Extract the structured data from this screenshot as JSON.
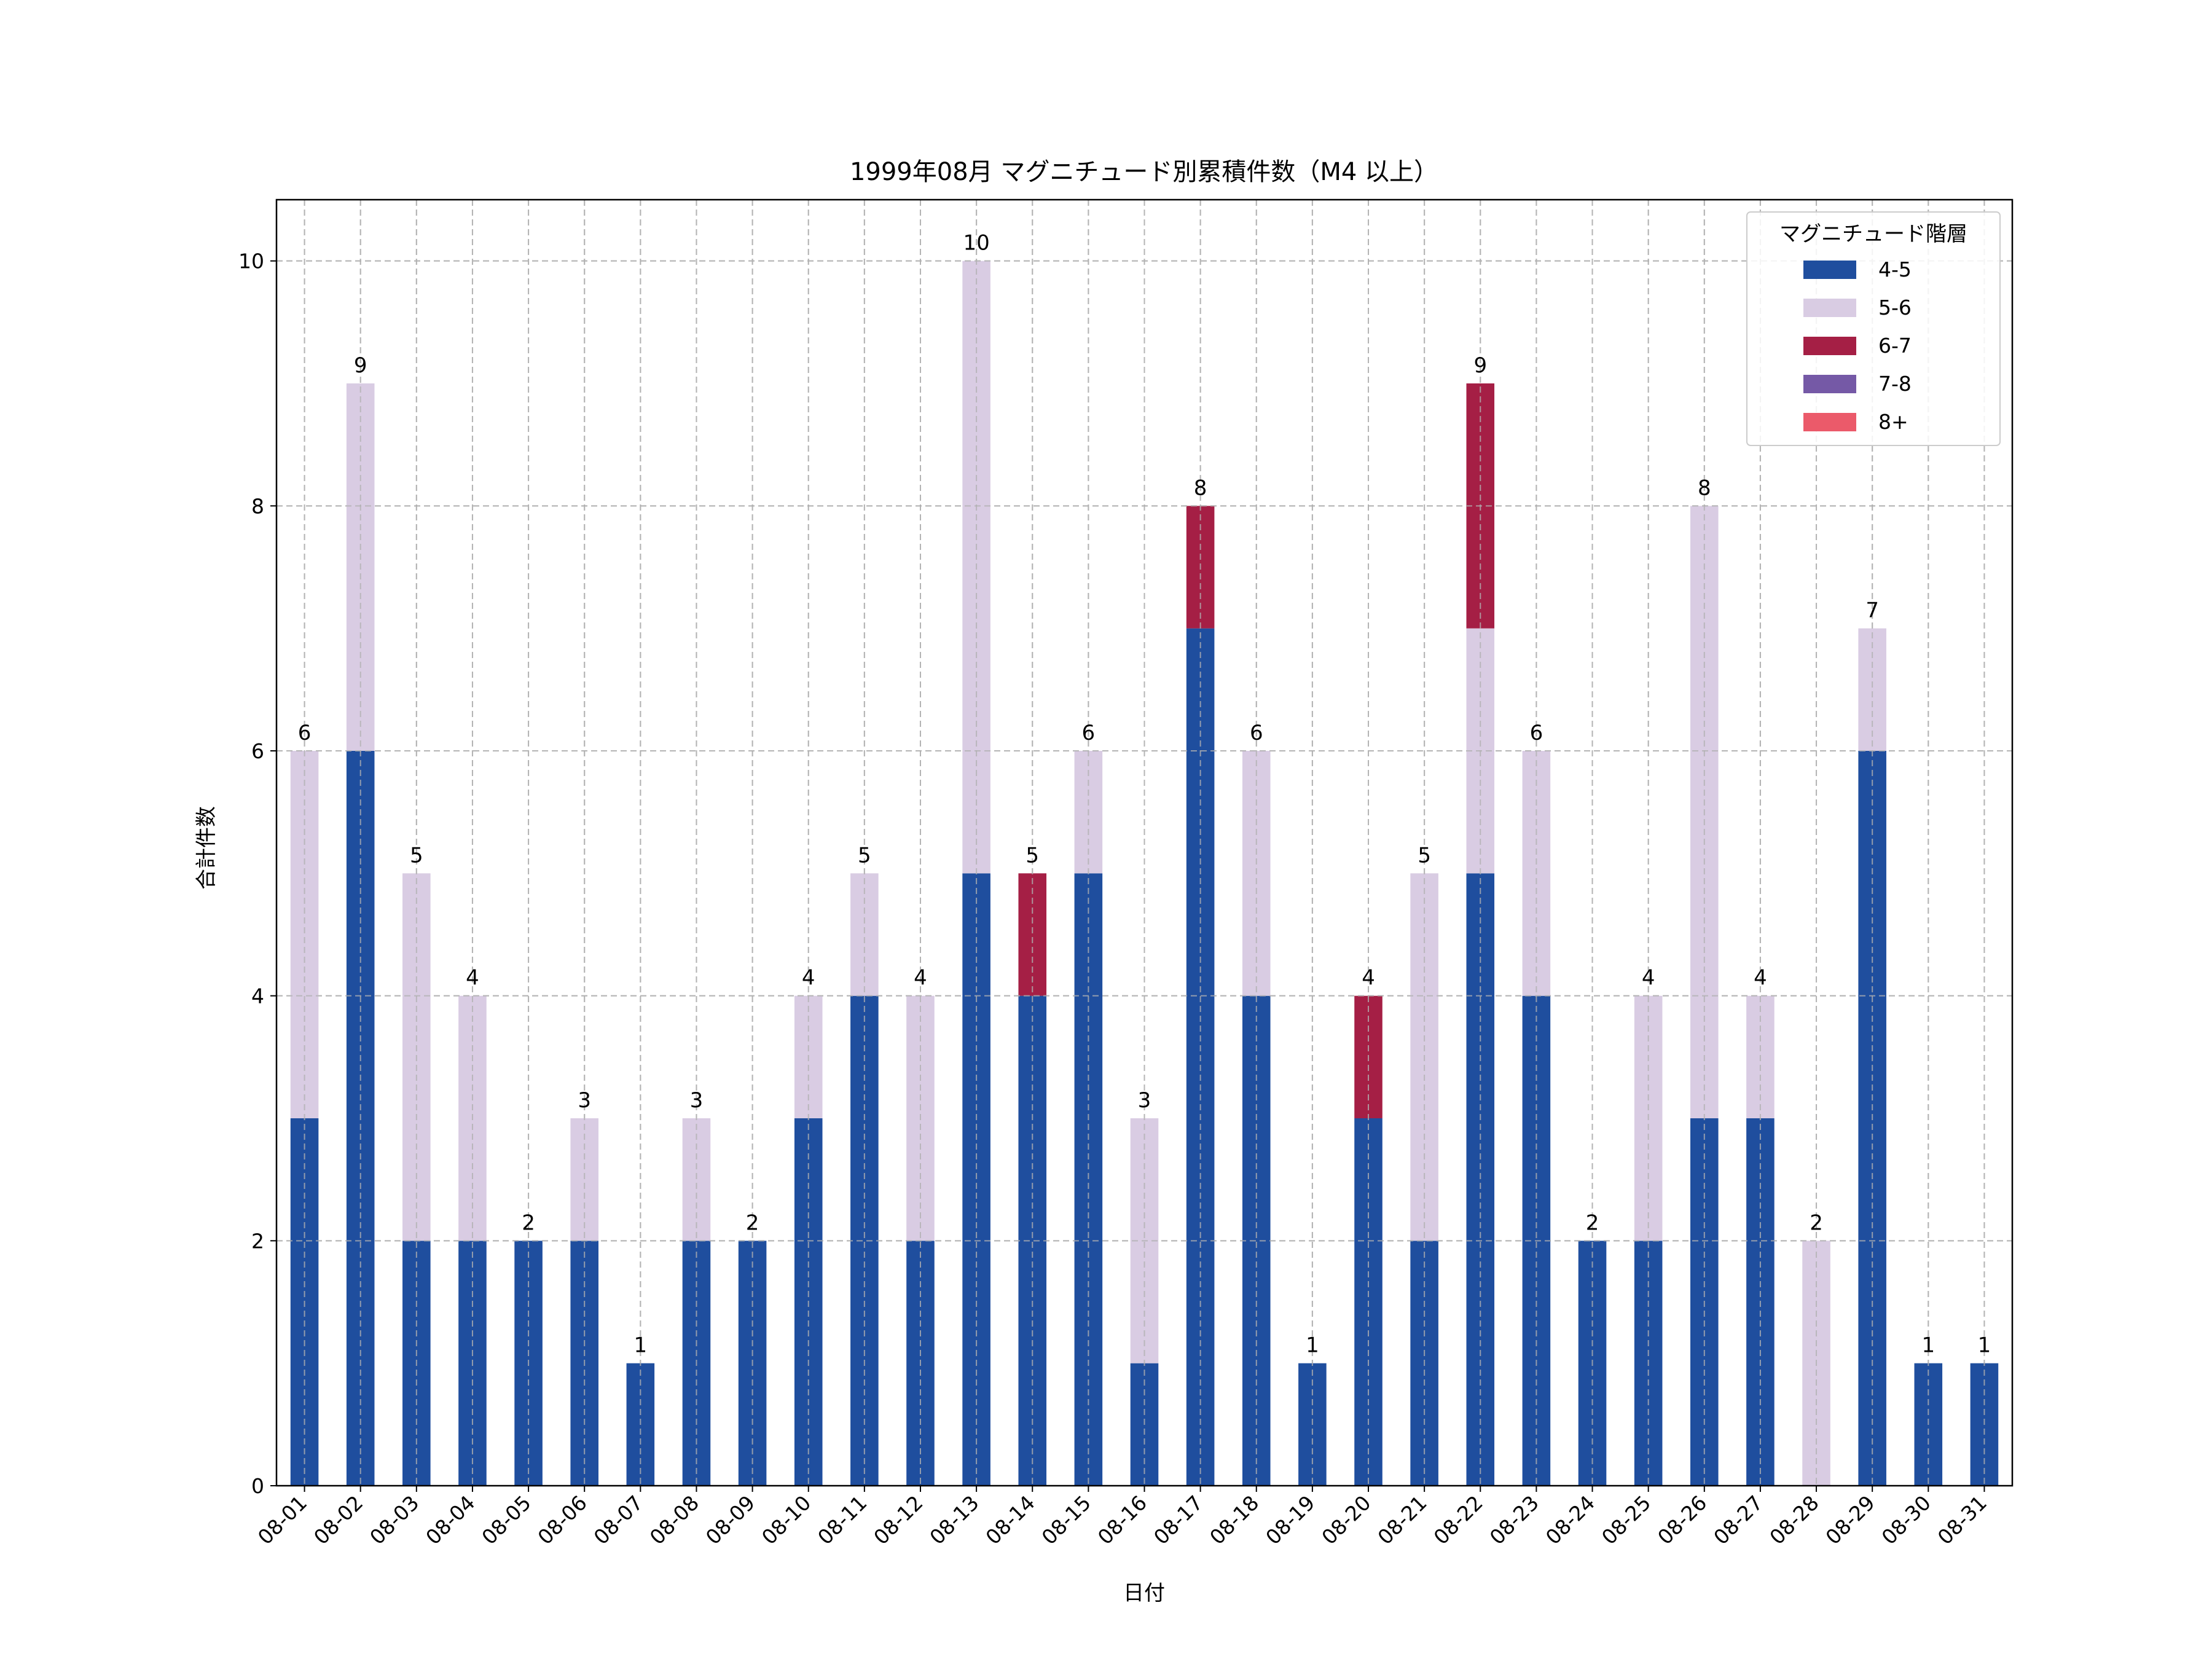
{
  "chart_data": {
    "type": "bar",
    "stacked": true,
    "title": "1999年08月 マグニチュード別累積件数（M4 以上）",
    "xlabel": "日付",
    "ylabel": "合計件数",
    "ylim": [
      0,
      10.5
    ],
    "yticks": [
      0,
      2,
      4,
      6,
      8,
      10
    ],
    "grid": true,
    "legend": {
      "title": "マグニチュード階層",
      "placement": "top-right"
    },
    "categories": [
      "08-01",
      "08-02",
      "08-03",
      "08-04",
      "08-05",
      "08-06",
      "08-07",
      "08-08",
      "08-09",
      "08-10",
      "08-11",
      "08-12",
      "08-13",
      "08-14",
      "08-15",
      "08-16",
      "08-17",
      "08-18",
      "08-19",
      "08-20",
      "08-21",
      "08-22",
      "08-23",
      "08-24",
      "08-25",
      "08-26",
      "08-27",
      "08-28",
      "08-29",
      "08-30",
      "08-31"
    ],
    "series": [
      {
        "name": "4-5",
        "color": "#1f4e9e",
        "values": [
          3,
          6,
          2,
          2,
          2,
          2,
          1,
          2,
          2,
          3,
          4,
          2,
          5,
          4,
          5,
          1,
          7,
          4,
          1,
          3,
          2,
          5,
          4,
          2,
          2,
          3,
          3,
          0,
          6,
          1,
          1
        ]
      },
      {
        "name": "5-6",
        "color": "#d9cce3",
        "values": [
          3,
          3,
          3,
          2,
          0,
          1,
          0,
          1,
          0,
          1,
          1,
          2,
          5,
          0,
          1,
          2,
          0,
          2,
          0,
          0,
          3,
          2,
          2,
          0,
          2,
          5,
          1,
          2,
          1,
          0,
          0
        ]
      },
      {
        "name": "6-7",
        "color": "#a51f45",
        "values": [
          0,
          0,
          0,
          0,
          0,
          0,
          0,
          0,
          0,
          0,
          0,
          0,
          0,
          1,
          0,
          0,
          1,
          0,
          0,
          1,
          0,
          2,
          0,
          0,
          0,
          0,
          0,
          0,
          0,
          0,
          0
        ]
      },
      {
        "name": "7-8",
        "color": "#7559a6",
        "values": [
          0,
          0,
          0,
          0,
          0,
          0,
          0,
          0,
          0,
          0,
          0,
          0,
          0,
          0,
          0,
          0,
          0,
          0,
          0,
          0,
          0,
          0,
          0,
          0,
          0,
          0,
          0,
          0,
          0,
          0,
          0
        ]
      },
      {
        "name": "8+",
        "color": "#eb5a6a",
        "values": [
          0,
          0,
          0,
          0,
          0,
          0,
          0,
          0,
          0,
          0,
          0,
          0,
          0,
          0,
          0,
          0,
          0,
          0,
          0,
          0,
          0,
          0,
          0,
          0,
          0,
          0,
          0,
          0,
          0,
          0,
          0
        ]
      }
    ],
    "totals": [
      6,
      9,
      5,
      4,
      2,
      3,
      1,
      3,
      2,
      4,
      5,
      4,
      10,
      5,
      6,
      3,
      8,
      6,
      1,
      4,
      5,
      9,
      6,
      2,
      4,
      8,
      4,
      2,
      7,
      1,
      1
    ]
  }
}
